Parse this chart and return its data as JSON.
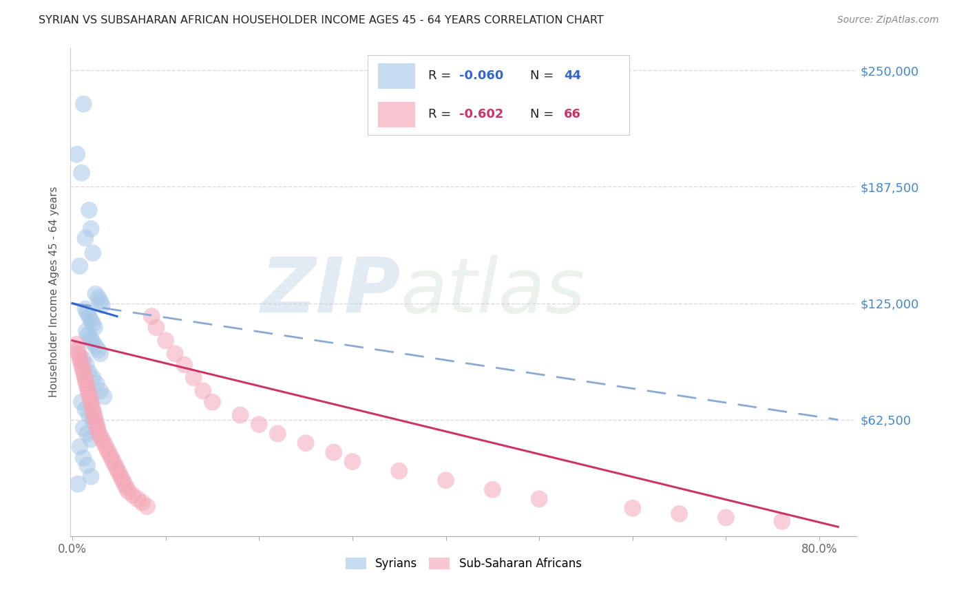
{
  "title": "SYRIAN VS SUBSAHARAN AFRICAN HOUSEHOLDER INCOME AGES 45 - 64 YEARS CORRELATION CHART",
  "source": "Source: ZipAtlas.com",
  "ylabel": "Householder Income Ages 45 - 64 years",
  "yaxis_labels": [
    "$250,000",
    "$187,500",
    "$125,000",
    "$62,500"
  ],
  "yaxis_values": [
    250000,
    187500,
    125000,
    62500
  ],
  "ylim": [
    0,
    262500
  ],
  "xlim": [
    -0.002,
    0.84
  ],
  "watermark_zip": "ZIP",
  "watermark_atlas": "atlas",
  "legend_syrian_r": "-0.060",
  "legend_syrian_n": "44",
  "legend_subsaharan_r": "-0.602",
  "legend_subsaharan_n": "66",
  "syrian_color": "#a8c8e8",
  "subsaharan_color": "#f4a8b8",
  "syrian_line_color": "#3366cc",
  "subsaharan_line_color": "#cc3366",
  "syrian_dashed_color": "#88aad4",
  "background_color": "#ffffff",
  "grid_color": "#d8d8e8",
  "title_color": "#222222",
  "right_label_color": "#4488cc",
  "tick_label_color": "#666666",
  "legend_text_dark": "#222222",
  "legend_text_blue": "#3366cc",
  "syrian_points_x": [
    0.012,
    0.005,
    0.01,
    0.018,
    0.02,
    0.014,
    0.022,
    0.008,
    0.025,
    0.028,
    0.03,
    0.032,
    0.014,
    0.016,
    0.018,
    0.02,
    0.022,
    0.024,
    0.015,
    0.017,
    0.02,
    0.022,
    0.025,
    0.028,
    0.03,
    0.012,
    0.015,
    0.018,
    0.022,
    0.026,
    0.03,
    0.034,
    0.01,
    0.014,
    0.018,
    0.022,
    0.012,
    0.016,
    0.02,
    0.008,
    0.012,
    0.016,
    0.02,
    0.006
  ],
  "syrian_points_y": [
    232000,
    205000,
    195000,
    175000,
    165000,
    160000,
    152000,
    145000,
    130000,
    128000,
    126000,
    124000,
    122000,
    120000,
    118000,
    116000,
    114000,
    112000,
    110000,
    108000,
    106000,
    104000,
    102000,
    100000,
    98000,
    95000,
    92000,
    88000,
    85000,
    82000,
    78000,
    75000,
    72000,
    68000,
    65000,
    62000,
    58000,
    55000,
    52000,
    48000,
    42000,
    38000,
    32000,
    28000
  ],
  "subsaharan_points_x": [
    0.005,
    0.006,
    0.007,
    0.008,
    0.009,
    0.01,
    0.011,
    0.012,
    0.013,
    0.014,
    0.015,
    0.016,
    0.017,
    0.018,
    0.019,
    0.02,
    0.021,
    0.022,
    0.023,
    0.024,
    0.025,
    0.026,
    0.027,
    0.028,
    0.03,
    0.032,
    0.034,
    0.036,
    0.038,
    0.04,
    0.042,
    0.044,
    0.046,
    0.048,
    0.05,
    0.052,
    0.054,
    0.056,
    0.058,
    0.06,
    0.065,
    0.07,
    0.075,
    0.08,
    0.085,
    0.09,
    0.1,
    0.11,
    0.12,
    0.13,
    0.14,
    0.15,
    0.18,
    0.2,
    0.22,
    0.25,
    0.28,
    0.3,
    0.35,
    0.4,
    0.45,
    0.5,
    0.6,
    0.65,
    0.7,
    0.76
  ],
  "subsaharan_points_y": [
    103000,
    100000,
    98000,
    96000,
    94000,
    92000,
    90000,
    88000,
    86000,
    84000,
    82000,
    80000,
    78000,
    76000,
    74000,
    72000,
    70000,
    68000,
    66000,
    64000,
    62000,
    60000,
    58000,
    56000,
    54000,
    52000,
    50000,
    48000,
    46000,
    44000,
    42000,
    40000,
    38000,
    36000,
    34000,
    32000,
    30000,
    28000,
    26000,
    24000,
    22000,
    20000,
    18000,
    16000,
    118000,
    112000,
    105000,
    98000,
    92000,
    85000,
    78000,
    72000,
    65000,
    60000,
    55000,
    50000,
    45000,
    40000,
    35000,
    30000,
    25000,
    20000,
    15000,
    12000,
    10000,
    8000
  ]
}
